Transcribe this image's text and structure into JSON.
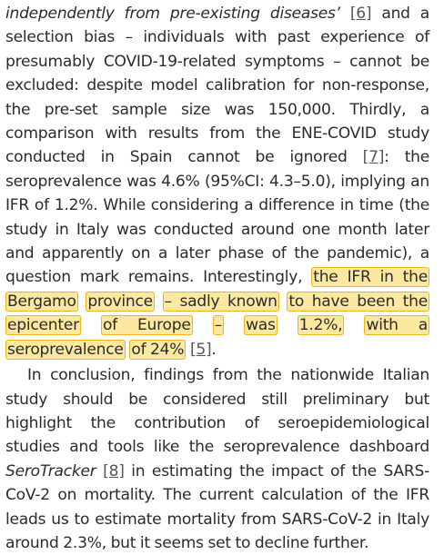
{
  "paragraph1": {
    "intro_italic": "independently from pre-existing diseases’",
    "s1": " and a selection bias – individuals with past experience of presumably COVID-19-related symptoms – cannot be excluded: despite model calibration for non-response, the pre-set sample size was 150,000. Thirdly, a comparison with results from the ENE-COVID study conducted in Spain cannot be ignored ",
    "s2": ": the seroprevalence was 4.6% (95%CI: 4.3–5.0), implying an IFR of 1.2%. While considering a difference in time (the study in Italy was conducted around one month later and apparently on a later phase of the pandemic), a question mark remains. Interestingly, ",
    "highlights": [
      "the IFR in the Bergamo",
      "province",
      "– sadly known",
      "to have been the epicenter",
      "of Europe",
      "–",
      "was",
      "1.2%,",
      "with a seroprevalence",
      "of 24%"
    ],
    "after": "."
  },
  "paragraph2": {
    "s1": "In conclusion, findings from the nationwide Italian study should be considered still preliminary but highlight the contribution of seroepidemiological studies and tools like the seroprevalence dashboard ",
    "tool_italic": "SeroTracker",
    "s2": " in estimating the impact of the SARS-CoV-2 on mortality. The current calculation of the IFR leads us to estimate mortality from SARS-CoV-2 in Italy around 2.3%, but it seems set to decline further."
  },
  "citations": {
    "ref6": "[6]",
    "ref7": "[7]",
    "ref5": "[5]",
    "ref8": "[8]"
  },
  "colors": {
    "text": "#2b2b2b",
    "highlight_fill": "#fde8a0",
    "highlight_border": "#f2b31c"
  }
}
